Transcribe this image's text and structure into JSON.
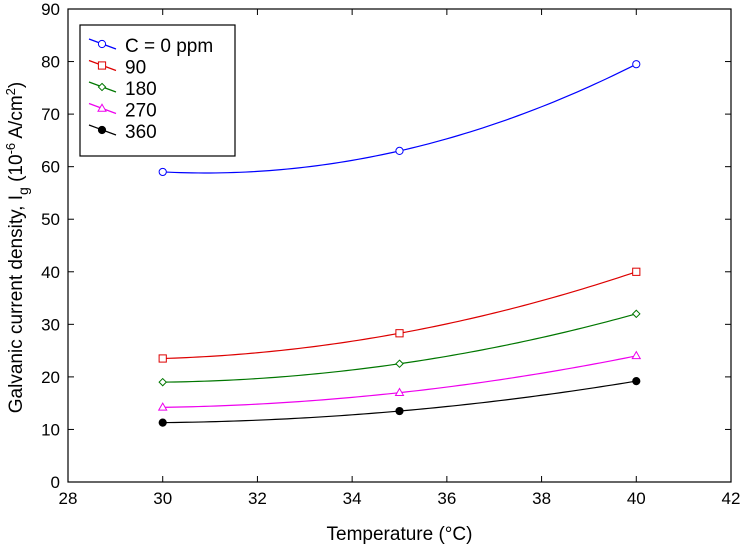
{
  "chart_data": {
    "type": "line",
    "xlabel": "Temperature (°C)",
    "ylabel": {
      "prefix": "Galvanic current density, I",
      "subscript": "g",
      "unit_open": " (10",
      "unit_exp": "-6",
      "unit_mid": " A/cm",
      "unit_exp2": "2",
      "unit_close": ")"
    },
    "xlim": [
      28,
      42
    ],
    "ylim": [
      0,
      90
    ],
    "xticks": [
      28,
      30,
      32,
      34,
      36,
      38,
      40,
      42
    ],
    "yticks": [
      0,
      10,
      20,
      30,
      40,
      50,
      60,
      70,
      80,
      90
    ],
    "x": [
      30,
      35,
      40
    ],
    "series": [
      {
        "name": "C = 0 ppm",
        "values": [
          59,
          63,
          79.5
        ],
        "color": "#0000ff",
        "marker": "circle-open"
      },
      {
        "name": "90",
        "values": [
          23.5,
          28.3,
          40
        ],
        "color": "#dd0000",
        "marker": "square-open"
      },
      {
        "name": "180",
        "values": [
          19,
          22.5,
          32
        ],
        "color": "#007700",
        "marker": "diamond-open"
      },
      {
        "name": "270",
        "values": [
          14.2,
          17,
          24
        ],
        "color": "#ee00ee",
        "marker": "triangle-open"
      },
      {
        "name": "360",
        "values": [
          11.3,
          13.5,
          19.2
        ],
        "color": "#000000",
        "marker": "circle-filled"
      }
    ],
    "legend_position": "top-left"
  }
}
